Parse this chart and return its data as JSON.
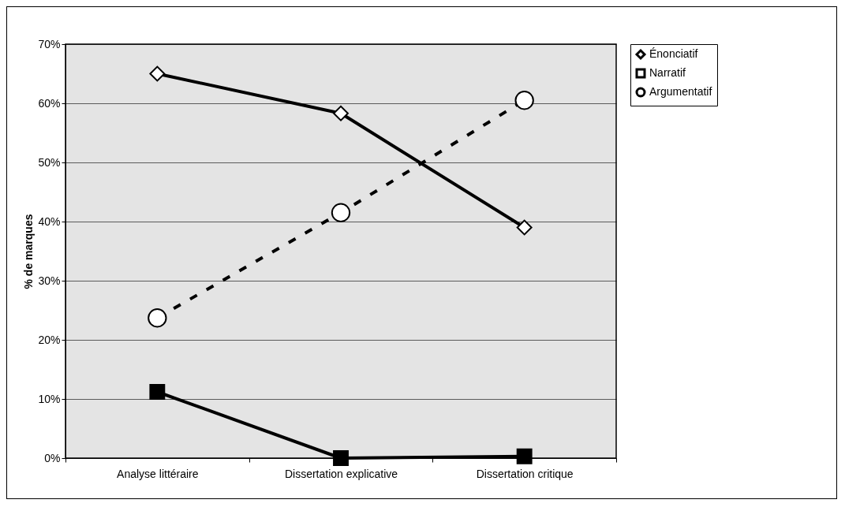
{
  "chart_data": {
    "type": "line",
    "ylabel": "% de marques",
    "categories": [
      "Analyse littéraire",
      "Dissertation explicative",
      "Dissertation critique"
    ],
    "series": [
      {
        "name": "Énonciatif",
        "color": "#000000",
        "marker": "diamond",
        "line_style": "solid",
        "values": [
          0.65,
          0.583,
          0.39
        ]
      },
      {
        "name": "Narratif",
        "color": "#000000",
        "marker": "square",
        "line_style": "solid",
        "values": [
          0.112,
          0,
          0.003
        ]
      },
      {
        "name": "Argumentatif",
        "color": "#000000",
        "marker": "circle",
        "line_style": "dashed",
        "values": [
          0.237,
          0.415,
          0.605
        ]
      }
    ],
    "ylim": [
      0,
      0.7
    ],
    "yticks": [
      {
        "value": 0,
        "label": "0%"
      },
      {
        "value": 0.1,
        "label": "10%"
      },
      {
        "value": 0.2,
        "label": "20%"
      },
      {
        "value": 0.3,
        "label": "30%"
      },
      {
        "value": 0.4,
        "label": "40%"
      },
      {
        "value": 0.5,
        "label": "50%"
      },
      {
        "value": 0.6,
        "label": "60%"
      },
      {
        "value": 0.7,
        "label": "70%"
      }
    ],
    "grid": "y",
    "legend": "right"
  }
}
